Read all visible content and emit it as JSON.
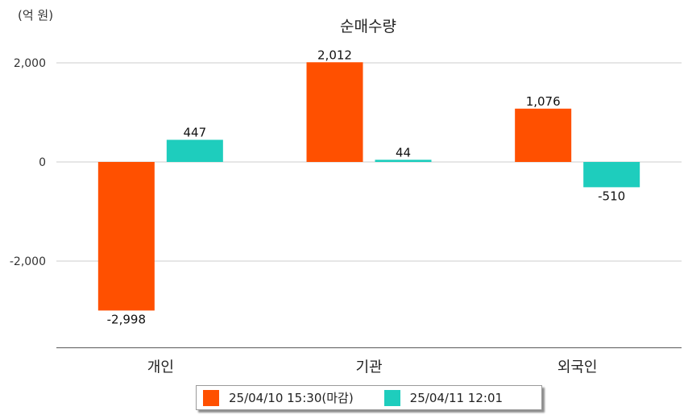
{
  "unit_label": "(억 원)",
  "chart_data": {
    "type": "bar",
    "title": "순매수량",
    "categories": [
      "개인",
      "기관",
      "외국인"
    ],
    "series": [
      {
        "name": "25/04/10 15:30(마감)",
        "color": "#ff5000",
        "values": [
          -2998,
          2012,
          1076
        ]
      },
      {
        "name": "25/04/11 12:01",
        "color": "#1ecdbd",
        "values": [
          447,
          44,
          -510
        ]
      }
    ],
    "data_labels": [
      [
        "-2,998",
        "2,012",
        "1,076"
      ],
      [
        "447",
        "44",
        "-510"
      ]
    ],
    "yticks": [
      2000,
      0,
      -2000
    ],
    "ytick_labels": [
      "2,000",
      "0",
      "-2,000"
    ],
    "ylim": [
      -3750,
      2000
    ],
    "grid": true,
    "legend": "bottom"
  }
}
